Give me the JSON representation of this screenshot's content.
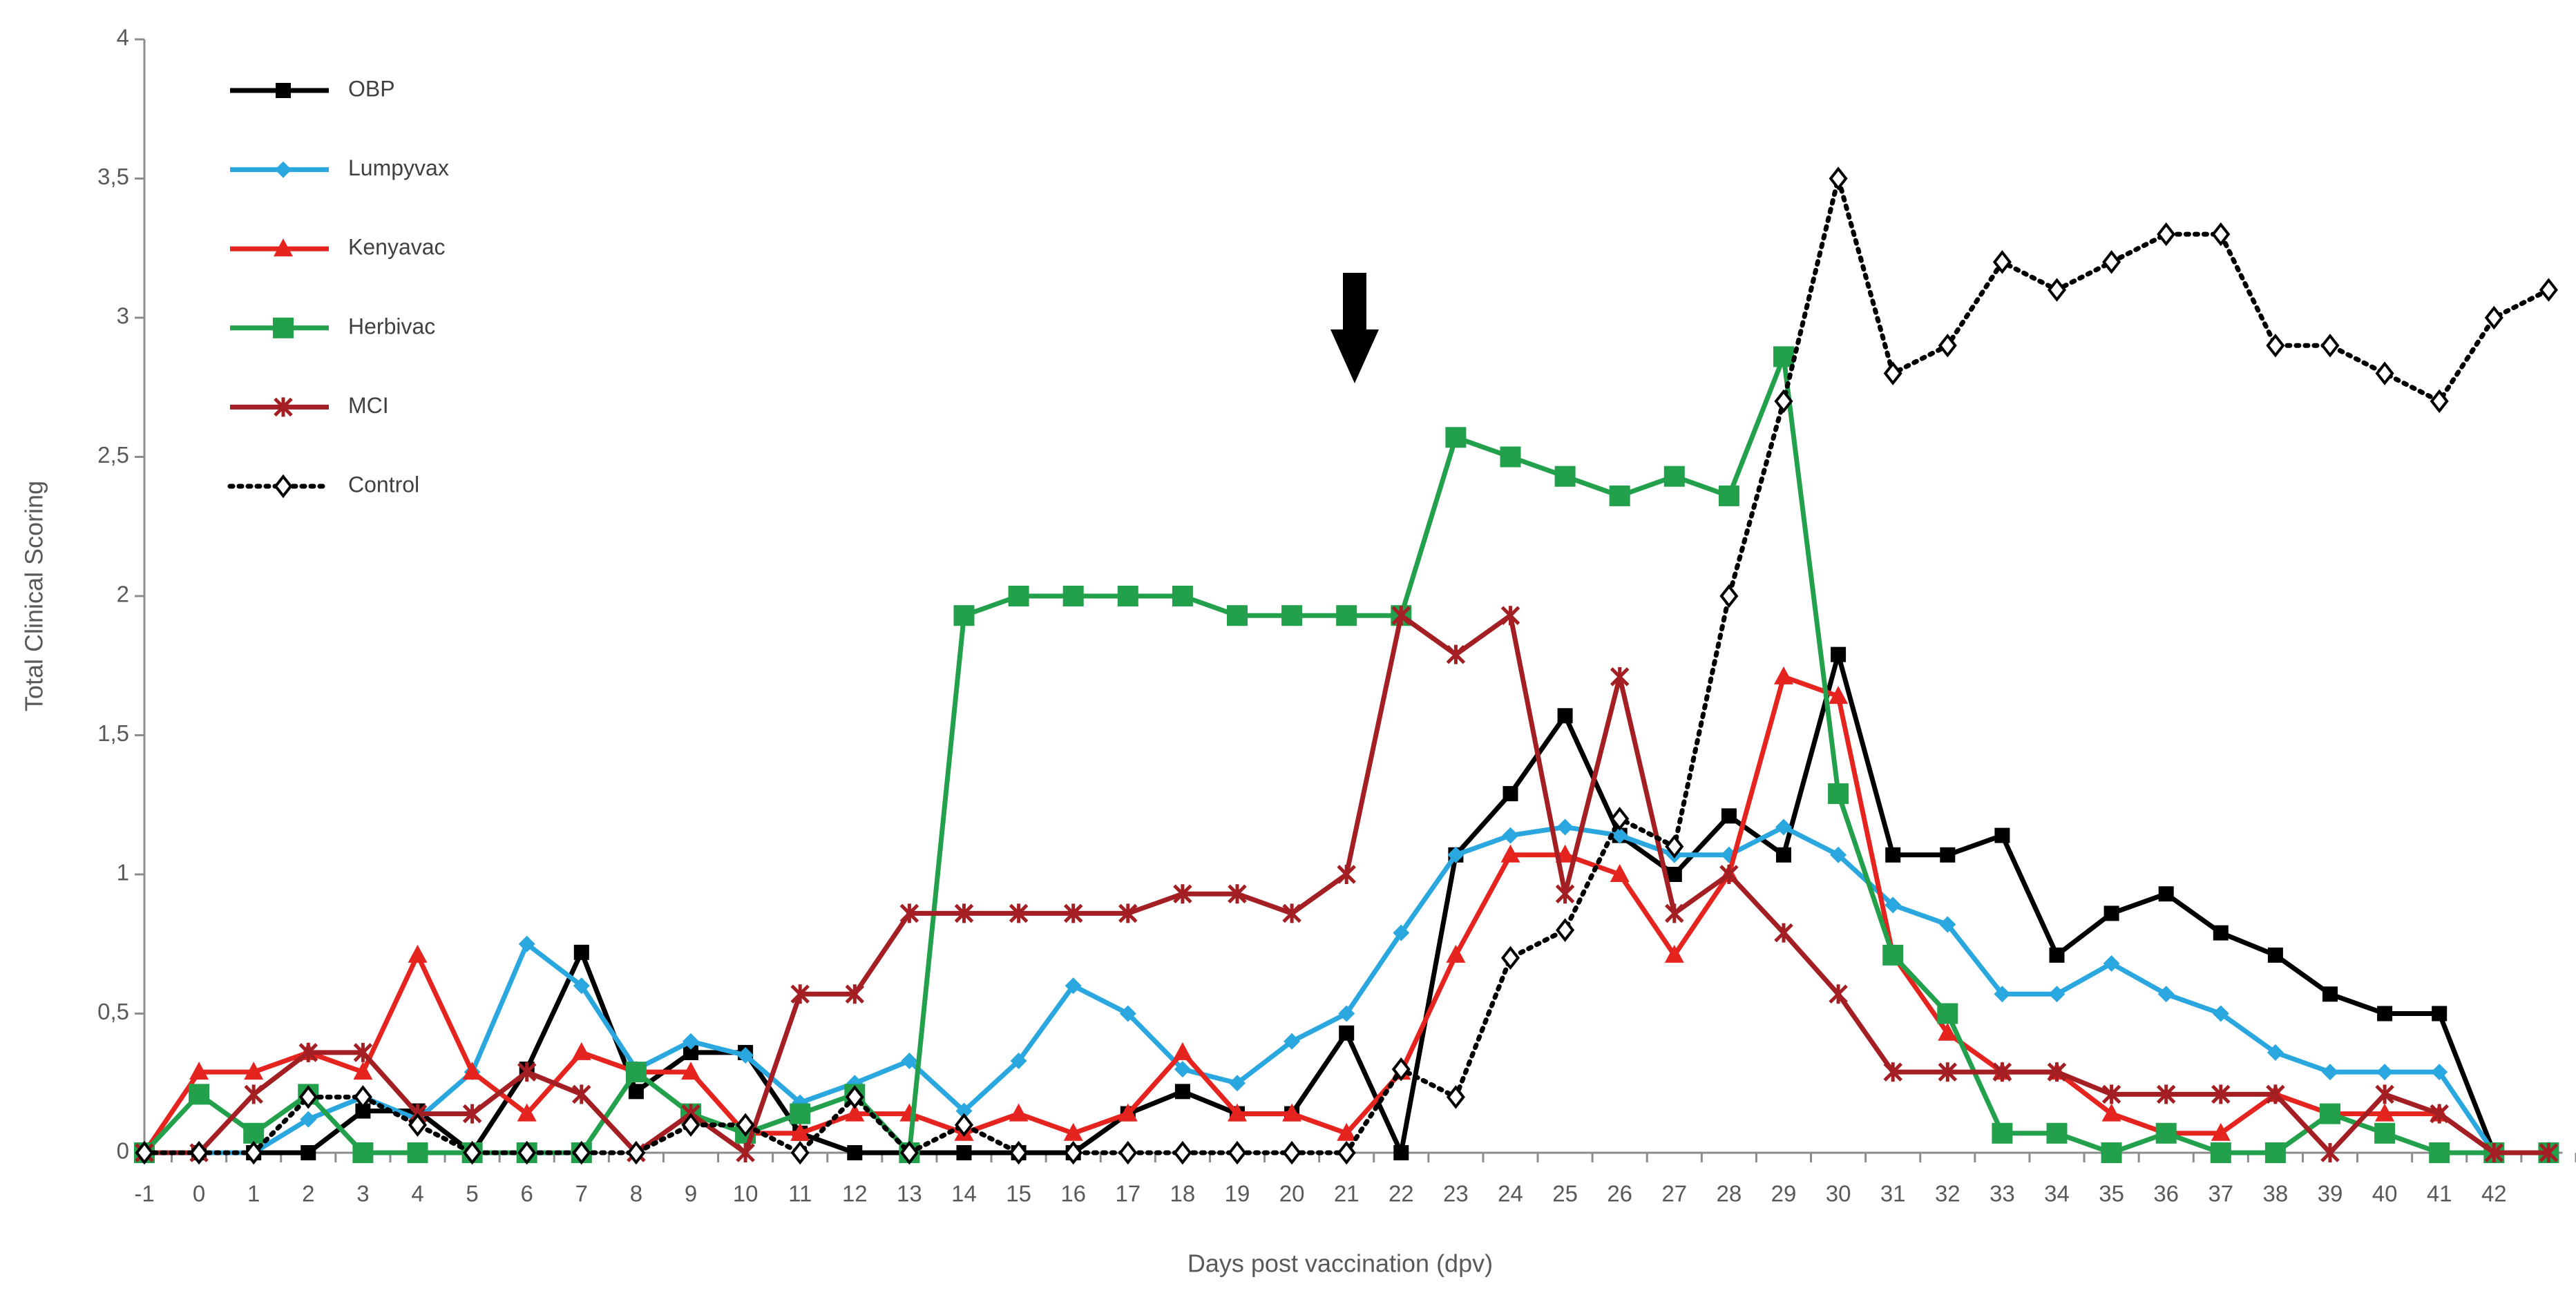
{
  "chart_data": {
    "type": "line",
    "x_label": "Days post vaccination (dpv)",
    "y_label": "Total Clinical Scoring",
    "categories": [
      "-1",
      "0",
      "1",
      "2",
      "3",
      "4",
      "5",
      "6",
      "7",
      "8",
      "9",
      "10",
      "11",
      "12",
      "13",
      "14",
      "15",
      "16",
      "17",
      "18",
      "19",
      "20",
      "21",
      "22",
      "23",
      "24",
      "25",
      "26",
      "27",
      "28",
      "29",
      "30",
      "31",
      "32",
      "33",
      "34",
      "35",
      "36",
      "37",
      "38",
      "39",
      "40",
      "41",
      "42",
      null
    ],
    "ylim": [
      0,
      4
    ],
    "yticks": [
      0,
      {
        "value": 0.5,
        "label": "0,5"
      },
      1,
      {
        "value": 1.5,
        "label": "1,5"
      },
      2,
      {
        "value": 2.5,
        "label": "2,5"
      },
      3,
      {
        "value": 3.5,
        "label": "3,5"
      },
      4
    ],
    "grid": false,
    "legend": "upper left",
    "series": [
      {
        "name": "OBP",
        "color": "#000000",
        "marker": "square",
        "dash": false,
        "values": [
          0,
          0,
          0,
          0,
          0.15,
          0.15,
          0,
          0.3,
          0.72,
          0.22,
          0.36,
          0.36,
          0.07,
          0,
          0,
          0,
          0,
          0,
          0.14,
          0.22,
          0.14,
          0.14,
          0.43,
          0,
          1.07,
          1.29,
          1.57,
          1.14,
          1.0,
          1.21,
          1.07,
          1.79,
          1.07,
          1.07,
          1.14,
          0.71,
          0.86,
          0.93,
          0.79,
          0.71,
          0.57,
          0.5,
          0.5,
          0,
          0
        ]
      },
      {
        "name": "Lumpyvax",
        "color": "#2aa7df",
        "marker": "diamond",
        "dash": false,
        "values": [
          0,
          0,
          0,
          0.12,
          0.2,
          0.12,
          0.29,
          0.75,
          0.6,
          0.3,
          0.4,
          0.35,
          0.18,
          0.25,
          0.33,
          0.15,
          0.33,
          0.6,
          0.5,
          0.3,
          0.25,
          0.4,
          0.5,
          0.79,
          1.07,
          1.14,
          1.17,
          1.14,
          1.07,
          1.07,
          1.17,
          1.07,
          0.89,
          0.82,
          0.57,
          0.57,
          0.68,
          0.57,
          0.5,
          0.36,
          0.29,
          0.29,
          0.29,
          0,
          0
        ]
      },
      {
        "name": "Kenyavac",
        "color": "#e52420",
        "marker": "triangle",
        "dash": false,
        "values": [
          0,
          0.29,
          0.29,
          0.36,
          0.29,
          0.71,
          0.29,
          0.14,
          0.36,
          0.29,
          0.29,
          0.07,
          0.07,
          0.14,
          0.14,
          0.07,
          0.14,
          0.07,
          0.14,
          0.36,
          0.14,
          0.14,
          0.07,
          0.29,
          0.71,
          1.07,
          1.07,
          1.0,
          0.71,
          1.0,
          1.71,
          1.64,
          0.71,
          0.43,
          0.29,
          0.29,
          0.14,
          0.07,
          0.07,
          0.21,
          0.14,
          0.14,
          0.14,
          0,
          0
        ]
      },
      {
        "name": "Herbivac",
        "color": "#22a04b",
        "marker": "bigsquare",
        "dash": false,
        "values": [
          0,
          0.21,
          0.07,
          0.21,
          0,
          0,
          0,
          0,
          0,
          0.29,
          0.14,
          0.07,
          0.14,
          0.21,
          0,
          1.93,
          2,
          2,
          2,
          2,
          1.93,
          1.93,
          1.93,
          1.93,
          2.57,
          2.5,
          2.43,
          2.36,
          2.43,
          2.36,
          2.86,
          1.29,
          0.71,
          0.5,
          0.07,
          0.07,
          0,
          0.07,
          0,
          0,
          0.14,
          0.07,
          0,
          0,
          0
        ]
      },
      {
        "name": "MCI",
        "color": "#a31f24",
        "marker": "star",
        "dash": false,
        "values": [
          0,
          0,
          0.21,
          0.36,
          0.36,
          0.14,
          0.14,
          0.29,
          0.21,
          0,
          0.14,
          0,
          0.57,
          0.57,
          0.86,
          0.86,
          0.86,
          0.86,
          0.86,
          0.93,
          0.93,
          0.86,
          1.0,
          1.93,
          1.79,
          1.93,
          0.93,
          1.71,
          0.86,
          1.0,
          0.79,
          0.57,
          0.29,
          0.29,
          0.29,
          0.29,
          0.21,
          0.21,
          0.21,
          0.21,
          0,
          0.21,
          0.14,
          0,
          0
        ]
      },
      {
        "name": "Control",
        "color": "#000000",
        "marker": "hollowdiamond",
        "dash": true,
        "values": [
          0,
          0,
          0,
          0.2,
          0.2,
          0.1,
          0,
          0,
          0,
          0,
          0.1,
          0.1,
          0,
          0.2,
          0,
          0.1,
          0,
          0,
          0,
          0,
          0,
          0,
          0,
          0.3,
          0.2,
          0.7,
          0.8,
          1.2,
          1.1,
          2.0,
          2.7,
          3.5,
          2.8,
          2.9,
          3.2,
          3.1,
          3.2,
          3.3,
          3.3,
          2.9,
          2.9,
          2.8,
          2.7,
          3.0,
          3.1
        ]
      }
    ]
  }
}
